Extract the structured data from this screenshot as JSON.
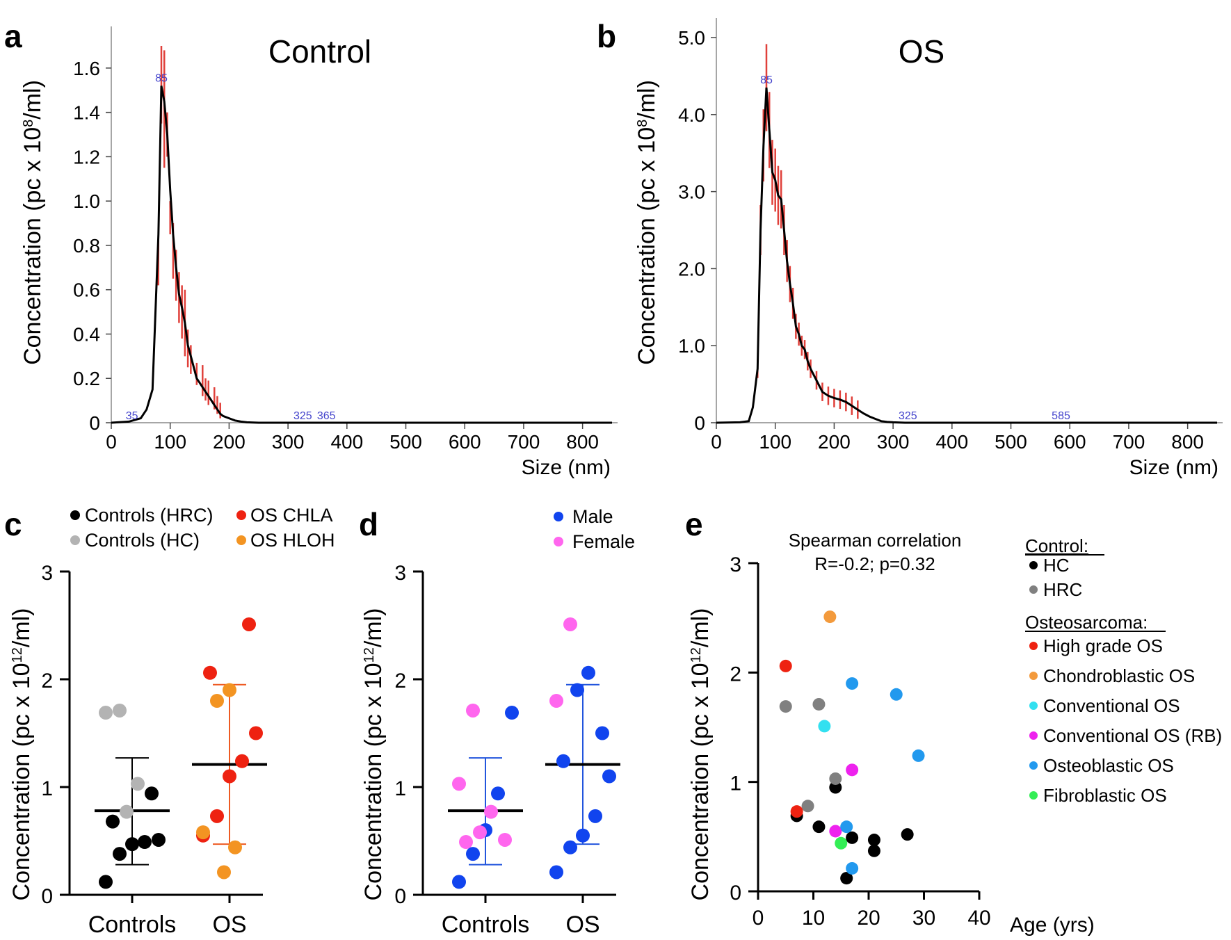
{
  "panels": {
    "a": {
      "letter": "a",
      "title": "Control",
      "ylabel_pre": "Concentration (pc x 10",
      "ylabel_sup": "8",
      "ylabel_post": "/ml)",
      "xlabel": "Size (nm)",
      "peak_labels": [
        "35",
        "85",
        "325",
        "365"
      ]
    },
    "b": {
      "letter": "b",
      "title": "OS",
      "ylabel_pre": "Concentration (pc x 10",
      "ylabel_sup": "8",
      "ylabel_post": "/ml)",
      "xlabel": "Size (nm)",
      "peak_labels": [
        "85",
        "325",
        "585"
      ]
    },
    "c": {
      "letter": "c",
      "ylabel_pre": "Concentration (pc x 10",
      "ylabel_sup": "12",
      "ylabel_post": "/ml)",
      "legend": [
        "Controls (HRC)",
        "OS CHLA",
        "Controls (HC)",
        "OS HLOH"
      ]
    },
    "d": {
      "letter": "d",
      "ylabel_pre": "Concentration (pc x 10",
      "ylabel_sup": "12",
      "ylabel_post": "/ml)",
      "legend": [
        "Male",
        "Female"
      ]
    },
    "e": {
      "letter": "e",
      "ylabel_pre": "Concentration (pc x 10",
      "ylabel_sup": "12",
      "ylabel_post": "/ml)",
      "xlabel": "Age (yrs)",
      "annotation_line1": "Spearman correlation",
      "annotation_line2": "R=-0.2; p=0.32",
      "legend_header_control": "Control:",
      "legend_header_os": "Osteosarcoma:",
      "legend": [
        "HC",
        "HRC",
        "High grade OS",
        "Chondroblastic OS",
        "Conventional OS",
        "Conventional OS (RB)",
        "Osteoblastic OS",
        "Fibroblastic OS"
      ]
    }
  },
  "colors": {
    "black": "#000000",
    "gray_dark": "#808080",
    "gray_light": "#b3b3b3",
    "red": "#ee2211",
    "orange": "#f39422",
    "male_blue": "#1144ee",
    "female_magenta": "#ff66ee",
    "error_red": "#e0403a",
    "cyan": "#33e0f0",
    "magenta": "#ee22ee",
    "sky_blue": "#2299ee",
    "green": "#33ee55",
    "orange_e": "#f39a3c",
    "error_blue": "#2255dd"
  },
  "chart_data": [
    {
      "id": "a",
      "type": "line",
      "title": "Control",
      "xlabel": "Size (nm)",
      "ylabel": "Concentration (pc x 10^8/ml)",
      "xlim": [
        0,
        850
      ],
      "ylim": [
        0,
        1.7
      ],
      "xticks": [
        0,
        100,
        200,
        300,
        400,
        500,
        600,
        700,
        800
      ],
      "yticks": [
        0,
        0.2,
        0.4,
        0.6,
        0.8,
        1.0,
        1.2,
        1.4,
        1.6
      ],
      "ytick_labels": [
        "0",
        "0.2",
        "0.4",
        "0.6",
        "0.8",
        "1.0",
        "1.2",
        "1.4",
        "1.6"
      ],
      "x": [
        0,
        30,
        50,
        60,
        70,
        80,
        85,
        90,
        95,
        100,
        105,
        110,
        115,
        120,
        125,
        130,
        135,
        140,
        145,
        150,
        155,
        160,
        165,
        170,
        175,
        180,
        185,
        190,
        200,
        210,
        220,
        230,
        250,
        280,
        850
      ],
      "y": [
        0,
        0.005,
        0.02,
        0.06,
        0.15,
        0.85,
        1.52,
        1.45,
        1.3,
        1.05,
        0.85,
        0.7,
        0.58,
        0.52,
        0.45,
        0.35,
        0.3,
        0.25,
        0.2,
        0.18,
        0.16,
        0.14,
        0.12,
        0.1,
        0.08,
        0.06,
        0.04,
        0.03,
        0.02,
        0.01,
        0.005,
        0.002,
        0,
        0,
        0
      ],
      "error_bars": [
        {
          "x": 80,
          "lo": 0.62,
          "hi": 0.84
        },
        {
          "x": 85,
          "lo": 1.35,
          "hi": 1.7
        },
        {
          "x": 90,
          "lo": 1.15,
          "hi": 1.68
        },
        {
          "x": 95,
          "lo": 1.2,
          "hi": 1.4
        },
        {
          "x": 100,
          "lo": 0.85,
          "hi": 1.0
        },
        {
          "x": 105,
          "lo": 0.65,
          "hi": 0.9
        },
        {
          "x": 110,
          "lo": 0.55,
          "hi": 0.78
        },
        {
          "x": 115,
          "lo": 0.45,
          "hi": 0.68
        },
        {
          "x": 120,
          "lo": 0.38,
          "hi": 0.62
        },
        {
          "x": 125,
          "lo": 0.3,
          "hi": 0.6
        },
        {
          "x": 130,
          "lo": 0.25,
          "hi": 0.42
        },
        {
          "x": 135,
          "lo": 0.22,
          "hi": 0.35
        },
        {
          "x": 145,
          "lo": 0.17,
          "hi": 0.27
        },
        {
          "x": 155,
          "lo": 0.12,
          "hi": 0.26
        },
        {
          "x": 160,
          "lo": 0.1,
          "hi": 0.2
        },
        {
          "x": 165,
          "lo": 0.08,
          "hi": 0.19
        },
        {
          "x": 175,
          "lo": 0.06,
          "hi": 0.16
        },
        {
          "x": 180,
          "lo": 0.04,
          "hi": 0.12
        },
        {
          "x": 185,
          "lo": 0.02,
          "hi": 0.09
        }
      ],
      "peak_labels": [
        {
          "x": 35,
          "text": "35"
        },
        {
          "x": 85,
          "text": "85"
        },
        {
          "x": 325,
          "text": "325"
        },
        {
          "x": 365,
          "text": "365"
        }
      ]
    },
    {
      "id": "b",
      "type": "line",
      "title": "OS",
      "xlabel": "Size (nm)",
      "ylabel": "Concentration (pc x 10^8/ml)",
      "xlim": [
        0,
        850
      ],
      "ylim": [
        0,
        5.0
      ],
      "xticks": [
        0,
        100,
        200,
        300,
        400,
        500,
        600,
        700,
        800
      ],
      "yticks": [
        0,
        1.0,
        2.0,
        3.0,
        4.0,
        5.0
      ],
      "ytick_labels": [
        "0",
        "1.0",
        "2.0",
        "3.0",
        "4.0",
        "5.0"
      ],
      "x": [
        0,
        40,
        55,
        62,
        70,
        75,
        80,
        85,
        90,
        95,
        100,
        105,
        110,
        115,
        120,
        125,
        130,
        135,
        140,
        145,
        150,
        155,
        160,
        170,
        180,
        190,
        200,
        210,
        220,
        230,
        240,
        250,
        260,
        270,
        280,
        290,
        300,
        320,
        850
      ],
      "y": [
        0,
        0.005,
        0.02,
        0.2,
        0.7,
        2.5,
        3.6,
        4.35,
        3.8,
        3.25,
        3.15,
        2.95,
        2.9,
        2.5,
        2.1,
        1.8,
        1.55,
        1.25,
        1.15,
        1.0,
        0.95,
        0.8,
        0.7,
        0.55,
        0.4,
        0.35,
        0.32,
        0.3,
        0.27,
        0.22,
        0.17,
        0.12,
        0.08,
        0.05,
        0.02,
        0.01,
        0.005,
        0,
        0
      ]
    },
    {
      "id": "c",
      "type": "scatter",
      "categories": [
        "Controls",
        "OS"
      ],
      "ylabel": "Concentration (pc x 10^12/ml)",
      "ylim": [
        0,
        3
      ],
      "yticks": [
        0,
        1,
        2,
        3
      ],
      "summary": [
        {
          "category": "Controls",
          "mean": 0.78,
          "sd_lo": 0.28,
          "sd_hi": 1.27
        },
        {
          "category": "OS",
          "mean": 1.21,
          "sd_lo": 0.47,
          "sd_hi": 1.95
        }
      ],
      "series": [
        {
          "name": "Controls (HRC)",
          "color": "black",
          "points": [
            [
              "Controls",
              0.12
            ],
            [
              "Controls",
              0.38
            ],
            [
              "Controls",
              0.47
            ],
            [
              "Controls",
              0.49
            ],
            [
              "Controls",
              0.51
            ],
            [
              "Controls",
              0.68
            ],
            [
              "Controls",
              0.94
            ]
          ]
        },
        {
          "name": "Controls (HC)",
          "color": "gray_light",
          "points": [
            [
              "Controls",
              0.77
            ],
            [
              "Controls",
              1.03
            ],
            [
              "Controls",
              1.69
            ],
            [
              "Controls",
              1.71
            ]
          ]
        },
        {
          "name": "OS CHLA",
          "color": "red",
          "points": [
            [
              "OS",
              0.55
            ],
            [
              "OS",
              0.73
            ],
            [
              "OS",
              1.1
            ],
            [
              "OS",
              1.24
            ],
            [
              "OS",
              1.5
            ],
            [
              "OS",
              2.06
            ],
            [
              "OS",
              2.51
            ]
          ]
        },
        {
          "name": "OS HLOH",
          "color": "orange",
          "points": [
            [
              "OS",
              0.21
            ],
            [
              "OS",
              0.44
            ],
            [
              "OS",
              0.58
            ],
            [
              "OS",
              1.8
            ],
            [
              "OS",
              1.9
            ]
          ]
        }
      ]
    },
    {
      "id": "d",
      "type": "scatter",
      "categories": [
        "Controls",
        "OS"
      ],
      "ylabel": "Concentration (pc x 10^12/ml)",
      "ylim": [
        0,
        3
      ],
      "yticks": [
        0,
        1,
        2,
        3
      ],
      "summary": [
        {
          "category": "Controls",
          "mean": 0.78,
          "sd_lo": 0.28,
          "sd_hi": 1.27
        },
        {
          "category": "OS",
          "mean": 1.21,
          "sd_lo": 0.47,
          "sd_hi": 1.95
        }
      ],
      "series": [
        {
          "name": "Male",
          "color": "male_blue",
          "points": [
            [
              "Controls",
              0.12
            ],
            [
              "Controls",
              0.38
            ],
            [
              "Controls",
              0.6
            ],
            [
              "Controls",
              0.94
            ],
            [
              "Controls",
              1.69
            ],
            [
              "OS",
              0.21
            ],
            [
              "OS",
              0.44
            ],
            [
              "OS",
              0.55
            ],
            [
              "OS",
              0.73
            ],
            [
              "OS",
              1.1
            ],
            [
              "OS",
              1.24
            ],
            [
              "OS",
              1.5
            ],
            [
              "OS",
              1.9
            ],
            [
              "OS",
              2.06
            ]
          ]
        },
        {
          "name": "Female",
          "color": "female_magenta",
          "points": [
            [
              "Controls",
              0.49
            ],
            [
              "Controls",
              0.51
            ],
            [
              "Controls",
              0.58
            ],
            [
              "Controls",
              0.77
            ],
            [
              "Controls",
              1.03
            ],
            [
              "Controls",
              1.71
            ],
            [
              "OS",
              1.8
            ],
            [
              "OS",
              2.51
            ]
          ]
        }
      ]
    },
    {
      "id": "e",
      "type": "scatter",
      "xlabel": "Age (yrs)",
      "ylabel": "Concentration (pc x 10^12/ml)",
      "xlim": [
        0,
        40
      ],
      "ylim": [
        0,
        3
      ],
      "xticks": [
        0,
        10,
        20,
        30,
        40
      ],
      "yticks": [
        0,
        1,
        2,
        3
      ],
      "annotation": "Spearman correlation R=-0.2; p=0.32",
      "series": [
        {
          "name": "HC",
          "color": "black",
          "x": [
            7,
            11,
            14,
            16,
            17,
            21,
            21,
            27
          ],
          "y": [
            0.69,
            0.59,
            0.95,
            0.12,
            0.49,
            0.47,
            0.37,
            0.52
          ]
        },
        {
          "name": "HRC",
          "color": "gray_dark",
          "x": [
            5,
            9,
            11,
            14
          ],
          "y": [
            1.69,
            0.78,
            1.71,
            1.03
          ]
        },
        {
          "name": "High grade OS",
          "color": "red",
          "x": [
            5,
            7
          ],
          "y": [
            2.06,
            0.73
          ]
        },
        {
          "name": "Chondroblastic OS",
          "color": "orange_e",
          "x": [
            13
          ],
          "y": [
            2.51
          ]
        },
        {
          "name": "Conventional OS",
          "color": "cyan",
          "x": [
            12
          ],
          "y": [
            1.51
          ]
        },
        {
          "name": "Conventional OS (RB)",
          "color": "magenta",
          "x": [
            14,
            17
          ],
          "y": [
            0.55,
            1.11
          ]
        },
        {
          "name": "Osteoblastic OS",
          "color": "sky_blue",
          "x": [
            16,
            17,
            17,
            25,
            29
          ],
          "y": [
            0.59,
            0.21,
            1.9,
            1.8,
            1.24
          ]
        },
        {
          "name": "Fibroblastic OS",
          "color": "green",
          "x": [
            15
          ],
          "y": [
            0.44
          ]
        }
      ]
    }
  ]
}
